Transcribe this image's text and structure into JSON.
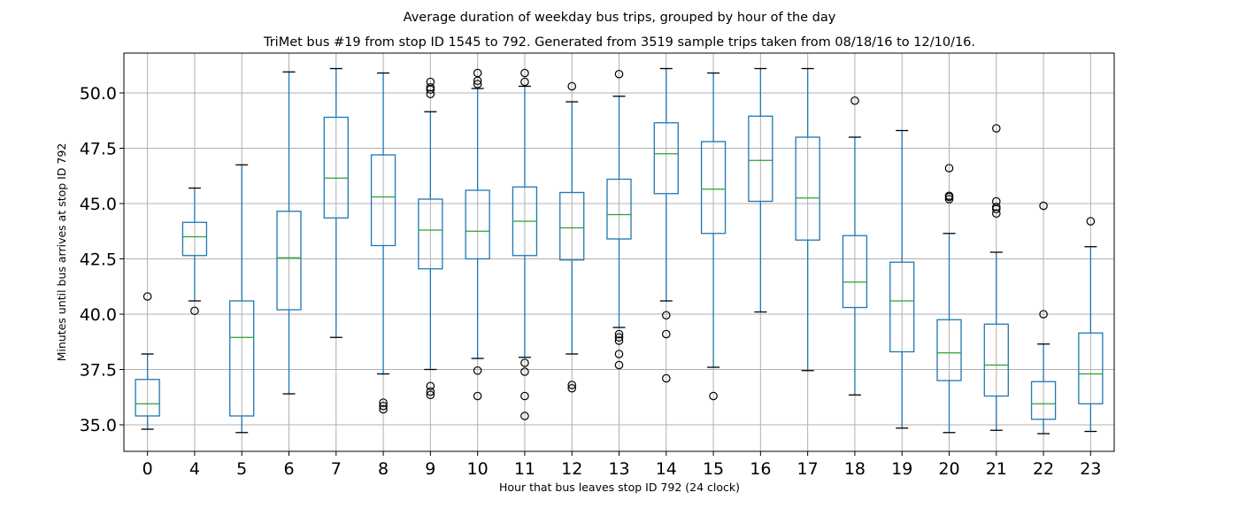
{
  "chart_data": {
    "type": "box",
    "title": "Average duration of weekday bus trips, grouped by hour of the day",
    "subtitle": "TriMet bus #19 from stop ID 1545 to 792. Generated from 3519 sample trips taken from 08/18/16 to 12/10/16.",
    "xlabel": "Hour that bus leaves stop ID 792 (24 clock)",
    "ylabel": "Minutes until bus arrives at stop ID 792",
    "ylim": [
      33.8,
      51.8
    ],
    "yticks": [
      "35.0",
      "37.5",
      "40.0",
      "42.5",
      "45.0",
      "47.5",
      "50.0"
    ],
    "grid": true,
    "colors": {
      "box": "#1f77b4",
      "median": "#2ca02c",
      "grid": "#b0b0b0",
      "whisker_cap": "#000000",
      "outlier": "#000000"
    },
    "categories": [
      "0",
      "4",
      "5",
      "6",
      "7",
      "8",
      "9",
      "10",
      "11",
      "12",
      "13",
      "14",
      "15",
      "16",
      "17",
      "18",
      "19",
      "20",
      "21",
      "22",
      "23"
    ],
    "boxes": [
      {
        "whislo": 34.8,
        "q1": 35.4,
        "med": 35.95,
        "q3": 37.05,
        "whishi": 38.2,
        "fliers": [
          40.8
        ]
      },
      {
        "whislo": 40.6,
        "q1": 42.65,
        "med": 43.5,
        "q3": 44.15,
        "whishi": 45.7,
        "fliers": [
          40.15
        ]
      },
      {
        "whislo": 34.65,
        "q1": 35.4,
        "med": 38.95,
        "q3": 40.6,
        "whishi": 46.75,
        "fliers": []
      },
      {
        "whislo": 36.4,
        "q1": 40.2,
        "med": 42.55,
        "q3": 44.65,
        "whishi": 50.95,
        "fliers": []
      },
      {
        "whislo": 38.95,
        "q1": 44.35,
        "med": 46.15,
        "q3": 48.9,
        "whishi": 51.1,
        "fliers": []
      },
      {
        "whislo": 37.3,
        "q1": 43.1,
        "med": 45.3,
        "q3": 47.2,
        "whishi": 50.9,
        "fliers": [
          36.0,
          35.85,
          35.7
        ]
      },
      {
        "whislo": 37.5,
        "q1": 42.05,
        "med": 43.8,
        "q3": 45.2,
        "whishi": 49.15,
        "fliers": [
          50.5,
          50.25,
          50.15,
          49.95,
          36.75,
          36.5,
          36.35
        ]
      },
      {
        "whislo": 38.0,
        "q1": 42.5,
        "med": 43.75,
        "q3": 45.6,
        "whishi": 50.2,
        "fliers": [
          50.9,
          50.55,
          50.4,
          37.45,
          36.3
        ]
      },
      {
        "whislo": 38.05,
        "q1": 42.65,
        "med": 44.2,
        "q3": 45.75,
        "whishi": 50.3,
        "fliers": [
          50.9,
          50.5,
          37.8,
          37.4,
          36.3,
          35.4
        ]
      },
      {
        "whislo": 38.2,
        "q1": 42.45,
        "med": 43.9,
        "q3": 45.5,
        "whishi": 49.6,
        "fliers": [
          50.3,
          36.8,
          36.65
        ]
      },
      {
        "whislo": 39.4,
        "q1": 43.4,
        "med": 44.5,
        "q3": 46.1,
        "whishi": 49.85,
        "fliers": [
          50.85,
          39.1,
          38.95,
          38.8,
          38.2,
          37.7
        ]
      },
      {
        "whislo": 40.6,
        "q1": 45.45,
        "med": 47.25,
        "q3": 48.65,
        "whishi": 51.1,
        "fliers": [
          39.95,
          39.1,
          37.1
        ]
      },
      {
        "whislo": 37.6,
        "q1": 43.65,
        "med": 45.65,
        "q3": 47.8,
        "whishi": 50.9,
        "fliers": [
          36.3
        ]
      },
      {
        "whislo": 40.1,
        "q1": 45.1,
        "med": 46.95,
        "q3": 48.95,
        "whishi": 51.1,
        "fliers": []
      },
      {
        "whislo": 37.45,
        "q1": 43.35,
        "med": 45.25,
        "q3": 48.0,
        "whishi": 51.1,
        "fliers": []
      },
      {
        "whislo": 36.35,
        "q1": 40.3,
        "med": 41.45,
        "q3": 43.55,
        "whishi": 48.0,
        "fliers": [
          49.65
        ]
      },
      {
        "whislo": 34.85,
        "q1": 38.3,
        "med": 40.6,
        "q3": 42.35,
        "whishi": 48.3,
        "fliers": []
      },
      {
        "whislo": 34.65,
        "q1": 37.0,
        "med": 38.25,
        "q3": 39.75,
        "whishi": 43.65,
        "fliers": [
          46.6,
          45.35,
          45.3,
          45.2
        ]
      },
      {
        "whislo": 34.75,
        "q1": 36.3,
        "med": 37.7,
        "q3": 39.55,
        "whishi": 42.8,
        "fliers": [
          48.4,
          45.1,
          44.85,
          44.75,
          44.55
        ]
      },
      {
        "whislo": 34.6,
        "q1": 35.25,
        "med": 35.95,
        "q3": 36.95,
        "whishi": 38.65,
        "fliers": [
          44.9,
          40.0
        ]
      },
      {
        "whislo": 34.7,
        "q1": 35.95,
        "med": 37.3,
        "q3": 39.15,
        "whishi": 43.05,
        "fliers": [
          44.2
        ]
      }
    ]
  }
}
